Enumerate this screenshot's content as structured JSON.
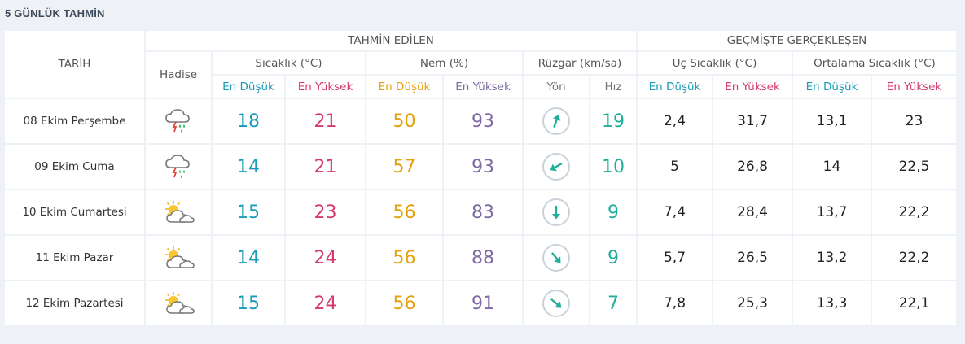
{
  "title": "5 GÜNLÜK TAHMİN",
  "headers": {
    "tarih": "TARİH",
    "tahmin": "TAHMİN EDİLEN",
    "gecmis": "GEÇMİŞTE GERÇEKLEŞEN",
    "hadise": "Hadise",
    "sicaklik": "Sıcaklık (°C)",
    "nem": "Nem (%)",
    "ruzgar": "Rüzgar (km/sa)",
    "uc_sicaklik": "Uç Sıcaklık (°C)",
    "ort_sicaklik": "Ortalama Sıcaklık (°C)",
    "en_dusuk": "En Düşük",
    "en_yuksek": "En Yüksek",
    "yon": "Yön",
    "hiz": "Hız"
  },
  "colors": {
    "low": "#1a9bb8",
    "high": "#d63a6b",
    "humidity_low": "#e3a10f",
    "humidity_high": "#7d6aa3",
    "wind": "#1fae9a"
  },
  "rows": [
    {
      "date": "08 Ekim Perşembe",
      "icon": "thunderstorm-rain-icon",
      "temp_low": "18",
      "temp_high": "21",
      "hum_low": "50",
      "hum_high": "93",
      "wind_dir_deg": 20,
      "wind_speed": "19",
      "past_extreme_low": "2,4",
      "past_extreme_high": "31,7",
      "past_avg_low": "13,1",
      "past_avg_high": "23"
    },
    {
      "date": "09 Ekim Cuma",
      "icon": "thunderstorm-rain-icon",
      "temp_low": "14",
      "temp_high": "21",
      "hum_low": "57",
      "hum_high": "93",
      "wind_dir_deg": 240,
      "wind_speed": "10",
      "past_extreme_low": "5",
      "past_extreme_high": "26,8",
      "past_avg_low": "14",
      "past_avg_high": "22,5"
    },
    {
      "date": "10 Ekim Cumartesi",
      "icon": "partly-cloudy-icon",
      "temp_low": "15",
      "temp_high": "23",
      "hum_low": "56",
      "hum_high": "83",
      "wind_dir_deg": 180,
      "wind_speed": "9",
      "past_extreme_low": "7,4",
      "past_extreme_high": "28,4",
      "past_avg_low": "13,7",
      "past_avg_high": "22,2"
    },
    {
      "date": "11 Ekim Pazar",
      "icon": "partly-cloudy-icon",
      "temp_low": "14",
      "temp_high": "24",
      "hum_low": "56",
      "hum_high": "88",
      "wind_dir_deg": 140,
      "wind_speed": "9",
      "past_extreme_low": "5,7",
      "past_extreme_high": "26,5",
      "past_avg_low": "13,2",
      "past_avg_high": "22,2"
    },
    {
      "date": "12 Ekim Pazartesi",
      "icon": "partly-cloudy-icon",
      "temp_low": "15",
      "temp_high": "24",
      "hum_low": "56",
      "hum_high": "91",
      "wind_dir_deg": 130,
      "wind_speed": "7",
      "past_extreme_low": "7,8",
      "past_extreme_high": "25,3",
      "past_avg_low": "13,3",
      "past_avg_high": "22,1"
    }
  ]
}
